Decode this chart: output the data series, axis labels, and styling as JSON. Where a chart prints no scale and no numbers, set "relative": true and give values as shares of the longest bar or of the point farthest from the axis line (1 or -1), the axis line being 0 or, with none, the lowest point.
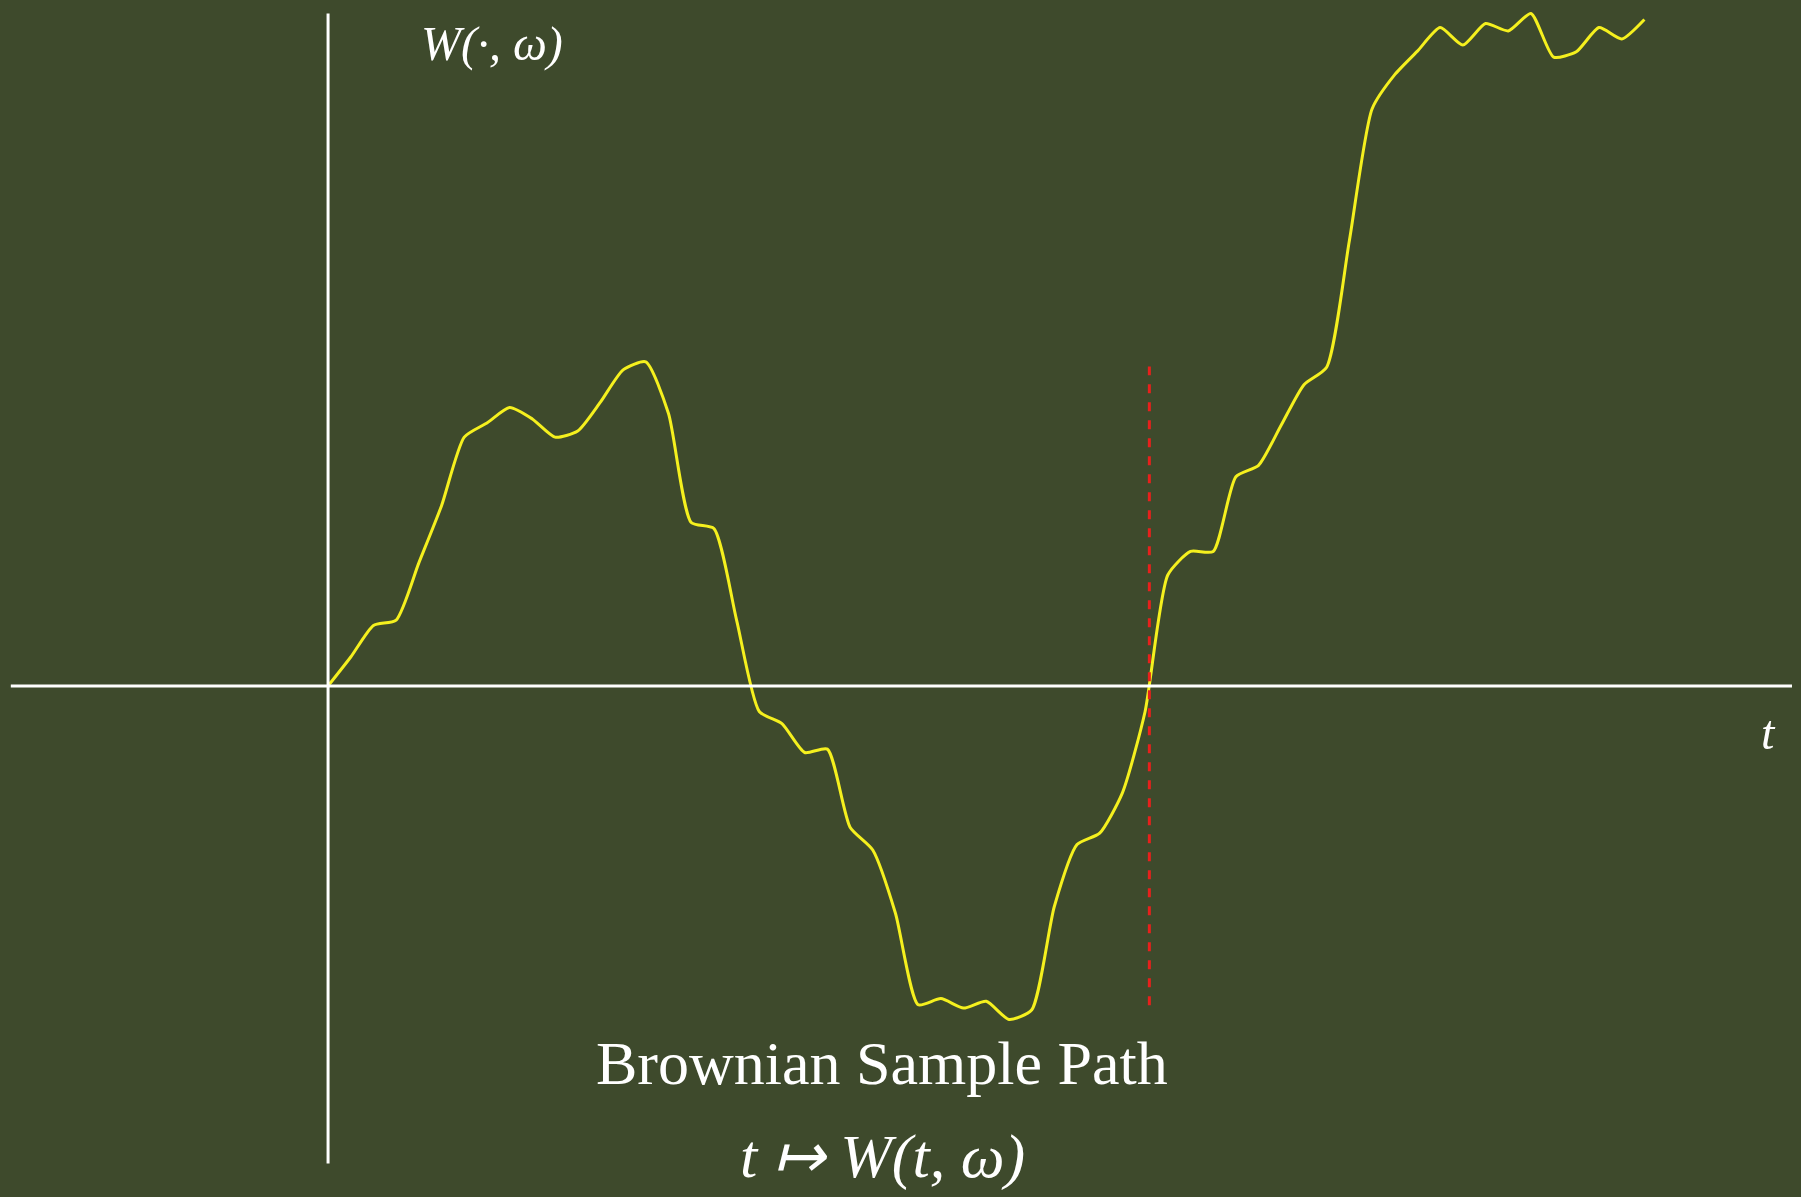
{
  "chart_data": {
    "type": "line",
    "relative": true,
    "ylabel": "W(·, ω)",
    "annotations": [
      "t",
      "Brownian Sample Path",
      "t ↦ W(t, ω)"
    ],
    "categories": [
      null,
      null,
      null,
      null,
      null,
      null,
      null,
      null,
      null,
      null,
      null,
      null,
      null,
      null,
      null,
      null,
      null,
      null,
      null,
      null,
      null,
      null,
      null,
      null,
      null,
      null,
      null,
      null,
      null,
      null,
      null,
      null,
      null,
      null,
      null,
      null,
      null,
      null,
      null,
      null,
      null,
      null,
      null,
      null,
      null,
      null,
      null,
      null,
      null,
      null,
      null,
      null,
      null,
      null,
      null,
      null,
      null,
      null,
      null
    ],
    "series": [
      {
        "color": "#f5f01e",
        "values": [
          0,
          0.043,
          0.09,
          0.098,
          0.183,
          0.268,
          0.37,
          0.391,
          0.414,
          0.397,
          0.37,
          0.379,
          0.422,
          0.47,
          0.482,
          0.405,
          0.243,
          0.234,
          0.098,
          -0.038,
          -0.056,
          -0.099,
          -0.094,
          -0.21,
          -0.244,
          -0.338,
          -0.474,
          -0.465,
          -0.479,
          -0.469,
          -0.496,
          -0.482,
          -0.328,
          -0.236,
          -0.219,
          -0.159,
          -0.038,
          0.165,
          0.2,
          0.2,
          0.311,
          0.328,
          0.388,
          0.448,
          0.474,
          0.662,
          0.858,
          0.909,
          0.944,
          0.979,
          0.953,
          0.985,
          0.974,
          1,
          0.935,
          0.943,
          0.979,
          0.962,
          0.991
        ]
      }
    ],
    "legend": false,
    "marker": "none",
    "line_style": "solid"
  }
}
